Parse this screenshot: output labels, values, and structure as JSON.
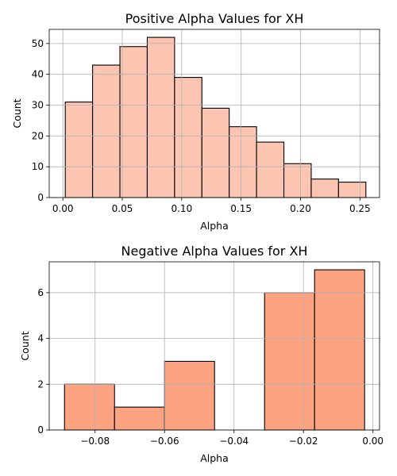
{
  "chart_data": [
    {
      "type": "bar",
      "title": "Positive Alpha Values for XH",
      "xlabel": "Alpha",
      "ylabel": "Count",
      "xlim": [
        -0.0115,
        0.2665
      ],
      "ylim": [
        0,
        54.6
      ],
      "xticks": [
        0.0,
        0.05,
        0.1,
        0.15,
        0.2,
        0.25
      ],
      "xtick_labels": [
        "0.00",
        "0.05",
        "0.10",
        "0.15",
        "0.20",
        "0.25"
      ],
      "yticks": [
        0,
        10,
        20,
        30,
        40,
        50
      ],
      "ytick_labels": [
        "0",
        "10",
        "20",
        "30",
        "40",
        "50"
      ],
      "grid": true,
      "bar_color": "#fcc5b1",
      "bins": [
        {
          "x0": 0.002,
          "x1": 0.025,
          "value": 31
        },
        {
          "x0": 0.025,
          "x1": 0.048,
          "value": 43
        },
        {
          "x0": 0.048,
          "x1": 0.071,
          "value": 49
        },
        {
          "x0": 0.071,
          "x1": 0.094,
          "value": 52
        },
        {
          "x0": 0.094,
          "x1": 0.117,
          "value": 39
        },
        {
          "x0": 0.117,
          "x1": 0.14,
          "value": 29
        },
        {
          "x0": 0.14,
          "x1": 0.163,
          "value": 23
        },
        {
          "x0": 0.163,
          "x1": 0.186,
          "value": 18
        },
        {
          "x0": 0.186,
          "x1": 0.209,
          "value": 11
        },
        {
          "x0": 0.209,
          "x1": 0.232,
          "value": 6
        },
        {
          "x0": 0.232,
          "x1": 0.255,
          "value": 5
        }
      ]
    },
    {
      "type": "bar",
      "title": "Negative Alpha Values for XH",
      "xlabel": "Alpha",
      "ylabel": "Count",
      "xlim": [
        -0.0932,
        0.0019
      ],
      "ylim": [
        0,
        7.35
      ],
      "xticks": [
        -0.08,
        -0.06,
        -0.04,
        -0.02,
        0.0
      ],
      "xtick_labels": [
        "−0.08",
        "−0.06",
        "−0.04",
        "−0.02",
        "0.00"
      ],
      "yticks": [
        0,
        2,
        4,
        6
      ],
      "ytick_labels": [
        "0",
        "2",
        "4",
        "6"
      ],
      "grid": true,
      "bar_color": "#fca482",
      "bins": [
        {
          "x0": -0.0888,
          "x1": -0.0744,
          "value": 2
        },
        {
          "x0": -0.0744,
          "x1": -0.06,
          "value": 1
        },
        {
          "x0": -0.06,
          "x1": -0.0456,
          "value": 3
        },
        {
          "x0": -0.0456,
          "x1": -0.0312,
          "value": 0
        },
        {
          "x0": -0.0312,
          "x1": -0.0168,
          "value": 6
        },
        {
          "x0": -0.0168,
          "x1": -0.0024,
          "value": 7
        }
      ]
    }
  ]
}
